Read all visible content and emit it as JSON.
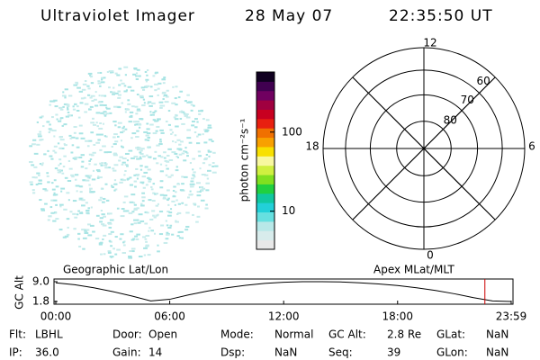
{
  "header": {
    "title": "Ultraviolet Imager",
    "date": "28 May 07",
    "time": "22:35:50 UT"
  },
  "image": {
    "label": "Geographic Lat/Lon"
  },
  "chart_data": [
    {
      "type": "colorbar",
      "ylabel": "photon cm⁻²s⁻¹",
      "log": true,
      "ylim": [
        3.3,
        575
      ],
      "yticks": [
        10,
        100
      ],
      "colors": [
        "#e8e8e8",
        "#d8ecec",
        "#b8e8e8",
        "#66e0e0",
        "#22d0d8",
        "#10c8a0",
        "#20d040",
        "#80e020",
        "#d0f040",
        "#f8f8a0",
        "#f8e000",
        "#f8a000",
        "#f07000",
        "#e82010",
        "#c80020",
        "#a00040",
        "#700060",
        "#400050",
        "#100020"
      ]
    },
    {
      "type": "polar",
      "title": "Apex MLat/MLT",
      "rlim": [
        90,
        50
      ],
      "rticks": [
        80,
        70,
        60
      ],
      "thetaticks": [
        {
          "value": 0,
          "label": "12"
        },
        {
          "value": 90,
          "label": "6"
        },
        {
          "value": 180,
          "label": "0"
        },
        {
          "value": 270,
          "label": "18"
        }
      ]
    },
    {
      "type": "line",
      "ylabel": "GC Alt",
      "color": "#000000",
      "marker_color": "#cc0000",
      "x": [
        0,
        1,
        2,
        3,
        4,
        5,
        6,
        7,
        8,
        9,
        10,
        11,
        12,
        13,
        14,
        15,
        16,
        17,
        18,
        19,
        20,
        21,
        22,
        23,
        23.983
      ],
      "values": [
        8.6,
        7.9,
        6.8,
        5.4,
        3.8,
        2.0,
        2.6,
        4.2,
        5.6,
        6.8,
        7.7,
        8.4,
        8.8,
        9.0,
        9.0,
        8.9,
        8.6,
        8.2,
        7.6,
        6.8,
        5.8,
        4.6,
        3.2,
        2.0,
        1.8
      ],
      "marker_x": 22.597,
      "xlim": [
        0,
        23.983
      ],
      "ylim": [
        1.8,
        9.0
      ],
      "xticks": [
        {
          "value": 0,
          "label": "00:00"
        },
        {
          "value": 6,
          "label": "06:00"
        },
        {
          "value": 12,
          "label": "12:00"
        },
        {
          "value": 18,
          "label": "18:00"
        },
        {
          "value": 23.983,
          "label": "23:59"
        }
      ],
      "yticks": [
        {
          "value": 9.0,
          "label": "9.0"
        },
        {
          "value": 1.8,
          "label": "1.8"
        }
      ]
    }
  ],
  "footer": [
    [
      {
        "label": "Flt:",
        "value": "LBHL"
      },
      {
        "label": "Door:",
        "value": "Open"
      },
      {
        "label": "Mode:",
        "value": "Normal"
      },
      {
        "label": "GC Alt:",
        "value": "2.8 Re"
      },
      {
        "label": "GLat:",
        "value": "NaN"
      }
    ],
    [
      {
        "label": "IP:",
        "value": "36.0"
      },
      {
        "label": "Gain:",
        "value": "14"
      },
      {
        "label": "Dsp:",
        "value": "NaN"
      },
      {
        "label": "Seq:",
        "value": "39"
      },
      {
        "label": "GLon:",
        "value": "NaN"
      }
    ]
  ]
}
